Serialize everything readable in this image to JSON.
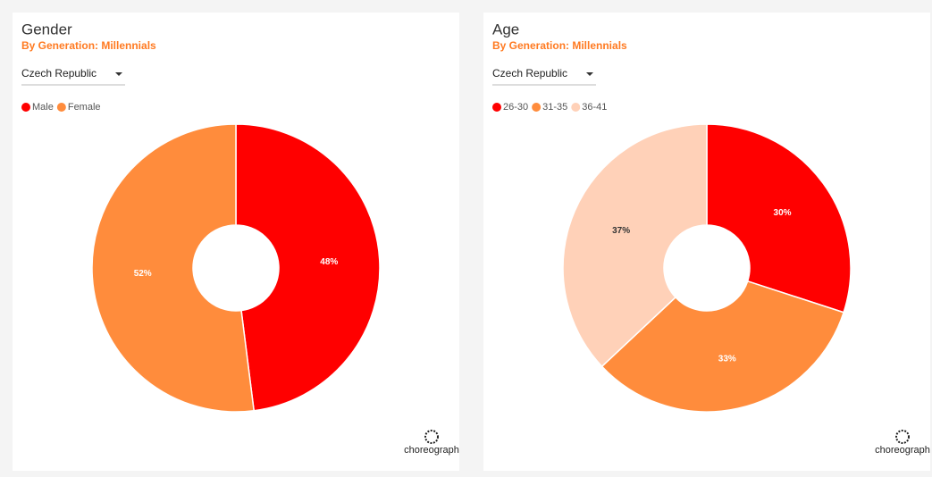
{
  "chart_data": [
    {
      "type": "pie",
      "title": "Gender",
      "subtitle": "By Generation: Millennials",
      "dropdown": "Czech Republic",
      "categories": [
        "Male",
        "Female"
      ],
      "values": [
        48,
        52
      ],
      "value_labels": [
        "48%",
        "52%"
      ],
      "colors": [
        "#ff0000",
        "#ff8c3c"
      ],
      "logo": "choreograph"
    },
    {
      "type": "pie",
      "title": "Age",
      "subtitle": "By Generation: Millennials",
      "dropdown": "Czech Republic",
      "categories": [
        "26-30",
        "31-35",
        "36-41"
      ],
      "values": [
        30,
        33,
        37
      ],
      "value_labels": [
        "30%",
        "33%",
        "37%"
      ],
      "colors": [
        "#ff0000",
        "#ff8c3c",
        "#ffd1b8"
      ],
      "logo": "choreograph"
    }
  ]
}
